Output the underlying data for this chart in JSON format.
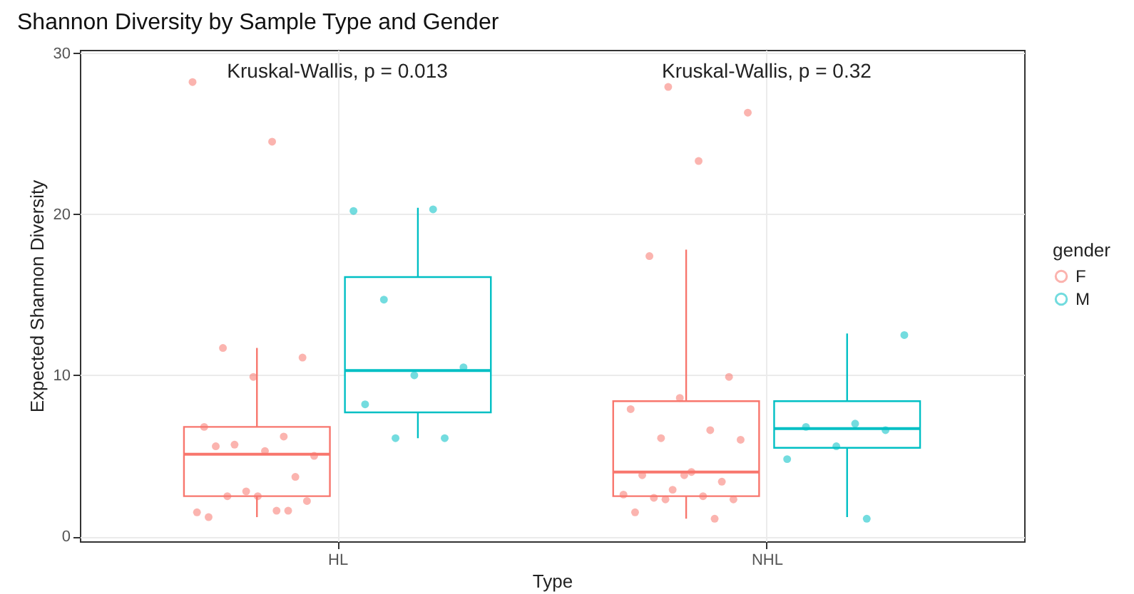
{
  "chart_data": {
    "type": "box",
    "title": "Shannon Diversity by Sample Type and Gender",
    "xlabel": "Type",
    "ylabel": "Expected Shannon Diversity",
    "legend_title": "gender",
    "legend": "right",
    "grid": true,
    "categories": [
      "HL",
      "NHL"
    ],
    "ylim": [
      -0.3,
      30.2
    ],
    "yticks": [
      0,
      10,
      20,
      30
    ],
    "annotations": [
      "Kruskal-Wallis, p = 0.013",
      "Kruskal-Wallis, p = 0.32"
    ],
    "series": [
      {
        "name": "F",
        "color": "#f8766d",
        "boxes": [
          {
            "low": 1.2,
            "q1": 2.5,
            "median": 5.1,
            "q3": 6.8,
            "high": 11.7
          },
          {
            "low": 1.1,
            "q1": 2.5,
            "median": 4.0,
            "q3": 8.4,
            "high": 17.8
          }
        ]
      },
      {
        "name": "M",
        "color": "#00bfc4",
        "boxes": [
          {
            "low": 6.1,
            "q1": 7.7,
            "median": 10.3,
            "q3": 16.1,
            "high": 20.4
          },
          {
            "low": 1.2,
            "q1": 5.5,
            "median": 6.7,
            "q3": 8.4,
            "high": 12.6
          }
        ]
      },
      {
        "type": "scatter",
        "color": "#f8766d",
        "x": [
          "HL",
          "HL",
          "HL",
          "HL",
          "HL",
          "HL",
          "HL",
          "HL",
          "HL",
          "HL",
          "HL",
          "HL",
          "HL",
          "HL",
          "HL",
          "HL",
          "HL",
          "HL",
          "HL",
          "HL",
          "NHL",
          "NHL",
          "NHL",
          "NHL",
          "NHL",
          "NHL",
          "NHL",
          "NHL",
          "NHL",
          "NHL",
          "NHL",
          "NHL",
          "NHL",
          "NHL",
          "NHL",
          "NHL",
          "NHL",
          "NHL",
          "NHL",
          "NHL",
          "NHL",
          "NHL"
        ],
        "values": [
          28.2,
          24.5,
          11.7,
          11.1,
          9.9,
          6.8,
          6.2,
          5.7,
          5.0,
          5.3,
          5.6,
          3.7,
          2.8,
          1.5,
          1.6,
          2.5,
          2.2,
          2.5,
          1.2,
          1.6,
          27.9,
          26.3,
          23.3,
          17.4,
          9.9,
          8.6,
          7.9,
          6.6,
          6.1,
          6.0,
          4.0,
          3.8,
          3.4,
          2.9,
          2.6,
          2.5,
          2.4,
          2.3,
          3.8,
          1.5,
          1.1,
          2.3
        ]
      },
      {
        "type": "scatter",
        "color": "#00bfc4",
        "x": [
          "HL",
          "HL",
          "HL",
          "HL",
          "HL",
          "HL",
          "HL",
          "HL",
          "NHL",
          "NHL",
          "NHL",
          "NHL",
          "NHL",
          "NHL",
          "NHL"
        ],
        "values": [
          20.2,
          20.3,
          14.7,
          10.5,
          10.0,
          8.2,
          6.1,
          6.1,
          12.5,
          7.0,
          6.8,
          6.6,
          5.6,
          4.8,
          1.1
        ]
      }
    ]
  }
}
